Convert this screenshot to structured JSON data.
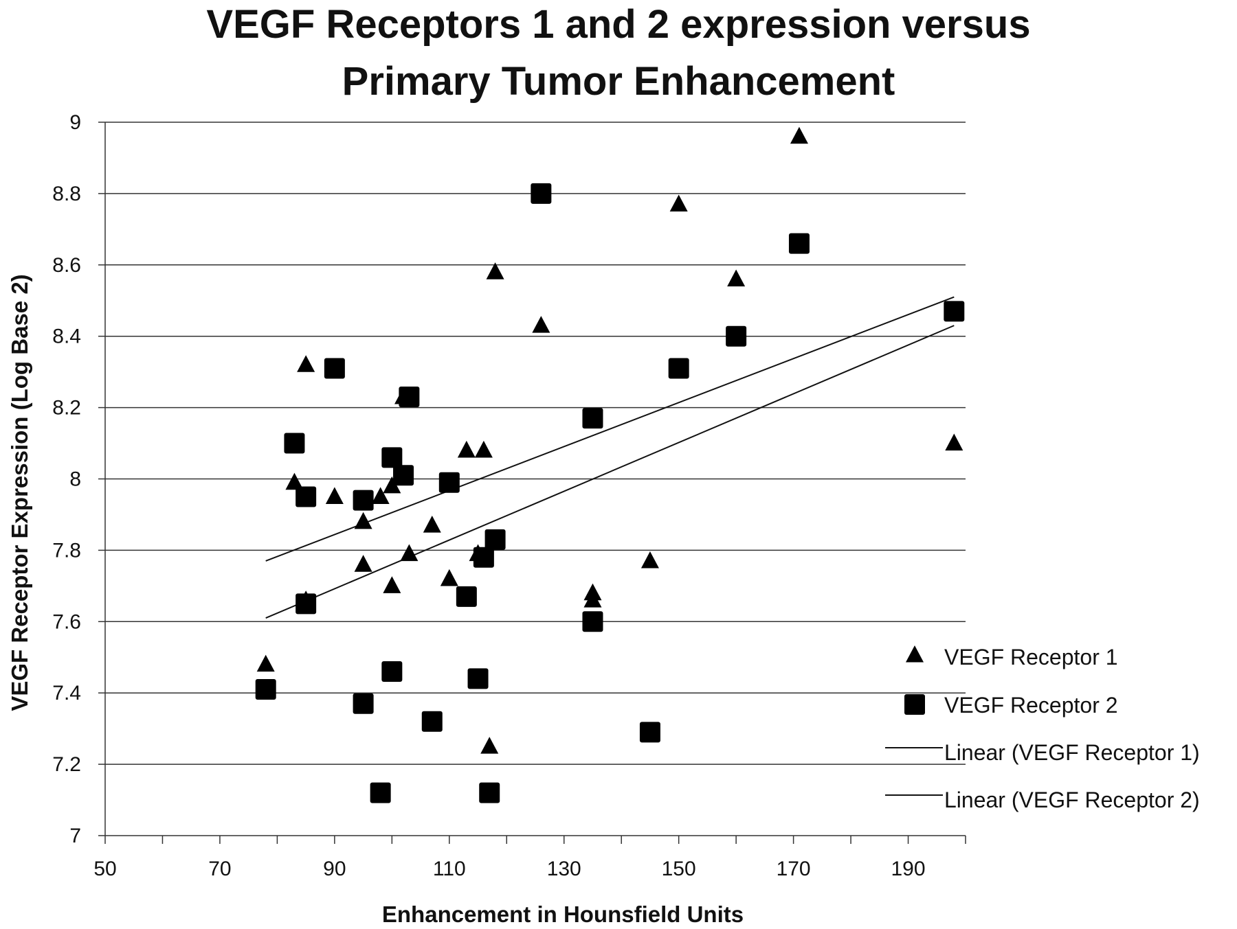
{
  "chart_data": {
    "type": "scatter",
    "title": [
      "VEGF Receptors 1 and 2 expression versus",
      "Primary Tumor Enhancement"
    ],
    "xlabel": "Enhancement in Hounsfield Units",
    "ylabel": "VEGF Receptor Expression (Log Base 2)",
    "xlim": [
      50,
      200
    ],
    "ylim": [
      7,
      9
    ],
    "xticks": [
      50,
      70,
      90,
      110,
      130,
      150,
      170,
      190
    ],
    "yticks": [
      7,
      7.2,
      7.4,
      7.6,
      7.8,
      8,
      8.2,
      8.4,
      8.6,
      8.8,
      9
    ],
    "grid": "horizontal",
    "legend_position": "right",
    "series": [
      {
        "name": "VEGF Receptor 1",
        "marker": "triangle",
        "color": "#000000",
        "points": [
          [
            78,
            7.48
          ],
          [
            83,
            7.99
          ],
          [
            85,
            8.32
          ],
          [
            85,
            7.66
          ],
          [
            90,
            7.95
          ],
          [
            95,
            7.88
          ],
          [
            95,
            7.76
          ],
          [
            98,
            7.95
          ],
          [
            100,
            7.98
          ],
          [
            100,
            7.7
          ],
          [
            102,
            8.23
          ],
          [
            103,
            7.79
          ],
          [
            107,
            7.87
          ],
          [
            110,
            7.72
          ],
          [
            113,
            8.08
          ],
          [
            115,
            7.79
          ],
          [
            116,
            8.08
          ],
          [
            117,
            7.25
          ],
          [
            118,
            8.58
          ],
          [
            126,
            8.43
          ],
          [
            135,
            7.68
          ],
          [
            135,
            7.66
          ],
          [
            145,
            7.77
          ],
          [
            150,
            8.77
          ],
          [
            160,
            8.56
          ],
          [
            171,
            8.96
          ],
          [
            198,
            8.1
          ]
        ]
      },
      {
        "name": "VEGF Receptor 2",
        "marker": "square",
        "color": "#000000",
        "points": [
          [
            78,
            7.41
          ],
          [
            83,
            8.1
          ],
          [
            85,
            7.95
          ],
          [
            85,
            7.65
          ],
          [
            90,
            8.31
          ],
          [
            95,
            7.94
          ],
          [
            95,
            7.37
          ],
          [
            98,
            7.12
          ],
          [
            100,
            8.06
          ],
          [
            100,
            7.46
          ],
          [
            102,
            8.01
          ],
          [
            103,
            8.23
          ],
          [
            107,
            7.32
          ],
          [
            110,
            7.99
          ],
          [
            113,
            7.67
          ],
          [
            115,
            7.44
          ],
          [
            116,
            7.78
          ],
          [
            117,
            7.12
          ],
          [
            118,
            7.83
          ],
          [
            126,
            8.8
          ],
          [
            135,
            8.17
          ],
          [
            135,
            7.6
          ],
          [
            145,
            7.29
          ],
          [
            150,
            8.31
          ],
          [
            160,
            8.4
          ],
          [
            171,
            8.66
          ],
          [
            198,
            8.47
          ]
        ]
      }
    ],
    "trendlines": [
      {
        "name": "Linear (VEGF Receptor 1)",
        "x": [
          78,
          198
        ],
        "y": [
          7.77,
          8.51
        ]
      },
      {
        "name": "Linear (VEGF Receptor 2)",
        "x": [
          78,
          198
        ],
        "y": [
          7.61,
          8.43
        ]
      }
    ]
  }
}
